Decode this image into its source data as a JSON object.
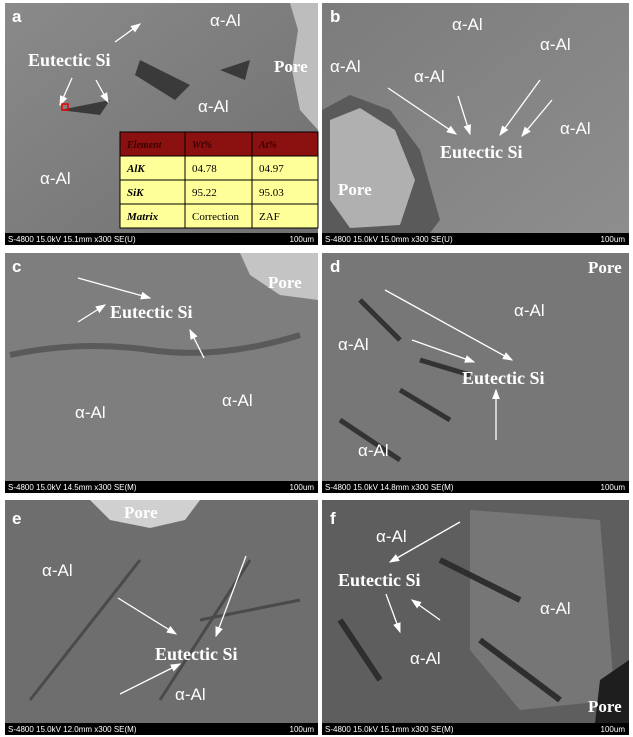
{
  "panels": [
    {
      "letter": "a",
      "labels": [
        "α-Al",
        "Eutectic Si",
        "Pore",
        "α-Al",
        "α-Al"
      ],
      "info": "S-4800 15.0kV 15.1mm x300 SE(U)",
      "scale": "100um",
      "table": {
        "header": [
          "Element",
          "Wt%",
          "At%"
        ],
        "rows": [
          [
            "AlK",
            "04.78",
            "04.97"
          ],
          [
            "SiK",
            "95.22",
            "95.03"
          ],
          [
            "Matrix",
            "Correction",
            "ZAF"
          ]
        ]
      }
    },
    {
      "letter": "b",
      "labels": [
        "α-Al",
        "α-Al",
        "α-Al",
        "α-Al",
        "α-Al",
        "Eutectic Si",
        "Pore"
      ],
      "info": "S-4800 15.0kV 15.0mm x300 SE(U)",
      "scale": "100um"
    },
    {
      "letter": "c",
      "labels": [
        "Pore",
        "Eutectic Si",
        "α-Al",
        "α-Al"
      ],
      "info": "S-4800 15.0kV 14.5mm x300 SE(M)",
      "scale": "100um"
    },
    {
      "letter": "d",
      "labels": [
        "Pore",
        "α-Al",
        "α-Al",
        "Eutectic Si",
        "α-Al"
      ],
      "info": "S-4800 15.0kV 14.8mm x300 SE(M)",
      "scale": "100um"
    },
    {
      "letter": "e",
      "labels": [
        "Pore",
        "α-Al",
        "Eutectic Si",
        "α-Al"
      ],
      "info": "S-4800 15.0kV 12.0mm x300 SE(M)",
      "scale": "100um"
    },
    {
      "letter": "f",
      "labels": [
        "α-Al",
        "Eutectic Si",
        "α-Al",
        "α-Al",
        "Pore"
      ],
      "info": "S-4800 15.0kV 15.1mm x300 SE(M)",
      "scale": "100um"
    }
  ]
}
